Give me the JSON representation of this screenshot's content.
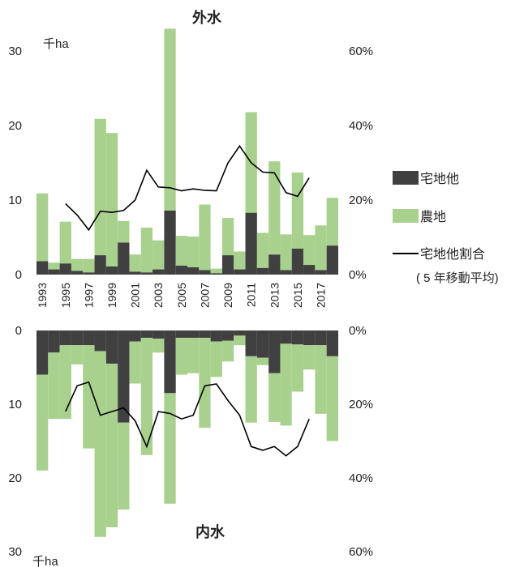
{
  "chart_data": [
    {
      "panel": "top",
      "type": "bar",
      "stacked": true,
      "title": "外水",
      "unit_label": "千ha",
      "x_tick_labels": [
        "1993",
        "1995",
        "1997",
        "1999",
        "2001",
        "2003",
        "2005",
        "2007",
        "2009",
        "2011",
        "2013",
        "2015",
        "2017"
      ],
      "categories": [
        1993,
        1994,
        1995,
        1996,
        1997,
        1998,
        1999,
        2000,
        2001,
        2002,
        2003,
        2004,
        2005,
        2006,
        2007,
        2008,
        2009,
        2010,
        2011,
        2012,
        2013,
        2014,
        2015,
        2016,
        2017,
        2018
      ],
      "ylim": [
        0,
        30
      ],
      "y_ticks": [
        "0",
        "10",
        "20",
        "30"
      ],
      "y2lim": [
        0,
        0.6
      ],
      "y2_ticks": [
        "0%",
        "20%",
        "40%",
        "60%"
      ],
      "series": [
        {
          "name": "宅地他",
          "color": "#404040",
          "values": [
            1.8,
            0.7,
            1.5,
            0.5,
            0.3,
            2.6,
            1.1,
            4.3,
            0.4,
            0.3,
            0.7,
            8.6,
            1.2,
            1.0,
            0.6,
            0.2,
            2.6,
            0.7,
            8.3,
            0.9,
            2.7,
            0.6,
            3.5,
            1.3,
            0.6,
            3.9
          ]
        },
        {
          "name": "農地",
          "color": "#a9d18e",
          "values": [
            9.1,
            0.9,
            5.6,
            1.6,
            1.8,
            18.3,
            17.9,
            2.9,
            2.3,
            6.0,
            3.9,
            24.4,
            4.0,
            4.1,
            8.8,
            0.6,
            5.0,
            2.4,
            13.5,
            4.7,
            12.5,
            4.8,
            10.2,
            4.0,
            6.0,
            6.4
          ]
        },
        {
          "name": "宅地他割合",
          "type": "line",
          "color": "#000000",
          "x": [
            1995,
            1996,
            1997,
            1998,
            1999,
            2000,
            2001,
            2002,
            2003,
            2004,
            2005,
            2006,
            2007,
            2008,
            2009,
            2010,
            2011,
            2012,
            2013,
            2014,
            2015,
            2016
          ],
          "values": [
            0.19,
            0.16,
            0.12,
            0.17,
            0.167,
            0.172,
            0.2,
            0.28,
            0.235,
            0.233,
            0.225,
            0.23,
            0.226,
            0.225,
            0.3,
            0.345,
            0.3,
            0.275,
            0.273,
            0.22,
            0.21,
            0.26
          ]
        }
      ]
    },
    {
      "panel": "bottom",
      "type": "bar",
      "stacked": true,
      "inverted": true,
      "title": "内水",
      "unit_label": "千ha",
      "ylim": [
        0,
        30
      ],
      "y_ticks": [
        "0",
        "10",
        "20",
        "30"
      ],
      "y2lim": [
        0,
        0.6
      ],
      "y2_ticks": [
        "0%",
        "20%",
        "40%",
        "60%"
      ],
      "categories": [
        1993,
        1994,
        1995,
        1996,
        1997,
        1998,
        1999,
        2000,
        2001,
        2002,
        2003,
        2004,
        2005,
        2006,
        2007,
        2008,
        2009,
        2010,
        2011,
        2012,
        2013,
        2014,
        2015,
        2016,
        2017,
        2018
      ],
      "series": [
        {
          "name": "宅地他",
          "color": "#404040",
          "values": [
            6.0,
            3.0,
            2.0,
            2.0,
            2.0,
            2.8,
            4.5,
            12.5,
            1.5,
            1.0,
            1.1,
            8.5,
            1.0,
            1.0,
            1.0,
            1.5,
            1.4,
            0.7,
            3.5,
            3.7,
            5.8,
            1.8,
            1.9,
            2.0,
            2.0,
            3.5
          ]
        },
        {
          "name": "農地",
          "color": "#a9d18e",
          "values": [
            13.0,
            9.0,
            10.0,
            2.6,
            14.0,
            25.2,
            22.2,
            11.8,
            5.7,
            15.9,
            1.9,
            15.0,
            5.0,
            4.8,
            12.2,
            4.8,
            2.8,
            1.3,
            9.0,
            1.0,
            6.6,
            11.1,
            6.4,
            3.3,
            9.3,
            11.5
          ]
        },
        {
          "name": "宅地他割合",
          "type": "line",
          "color": "#000000",
          "x": [
            1995,
            1996,
            1997,
            1998,
            1999,
            2000,
            2001,
            2002,
            2003,
            2004,
            2005,
            2006,
            2007,
            2008,
            2009,
            2010,
            2011,
            2012,
            2013,
            2014,
            2015,
            2016
          ],
          "values": [
            0.22,
            0.15,
            0.14,
            0.23,
            0.22,
            0.21,
            0.245,
            0.315,
            0.22,
            0.225,
            0.24,
            0.23,
            0.15,
            0.145,
            0.19,
            0.23,
            0.315,
            0.325,
            0.315,
            0.34,
            0.315,
            0.24
          ]
        }
      ]
    }
  ],
  "legend": {
    "items": [
      {
        "key": "residential",
        "label": "宅地他",
        "color": "#404040"
      },
      {
        "key": "farmland",
        "label": "農地",
        "color": "#a9d18e"
      },
      {
        "key": "ratio",
        "label": "宅地他割合",
        "color": "#000000"
      }
    ],
    "ratio_note": "( 5 年移動平均)"
  }
}
